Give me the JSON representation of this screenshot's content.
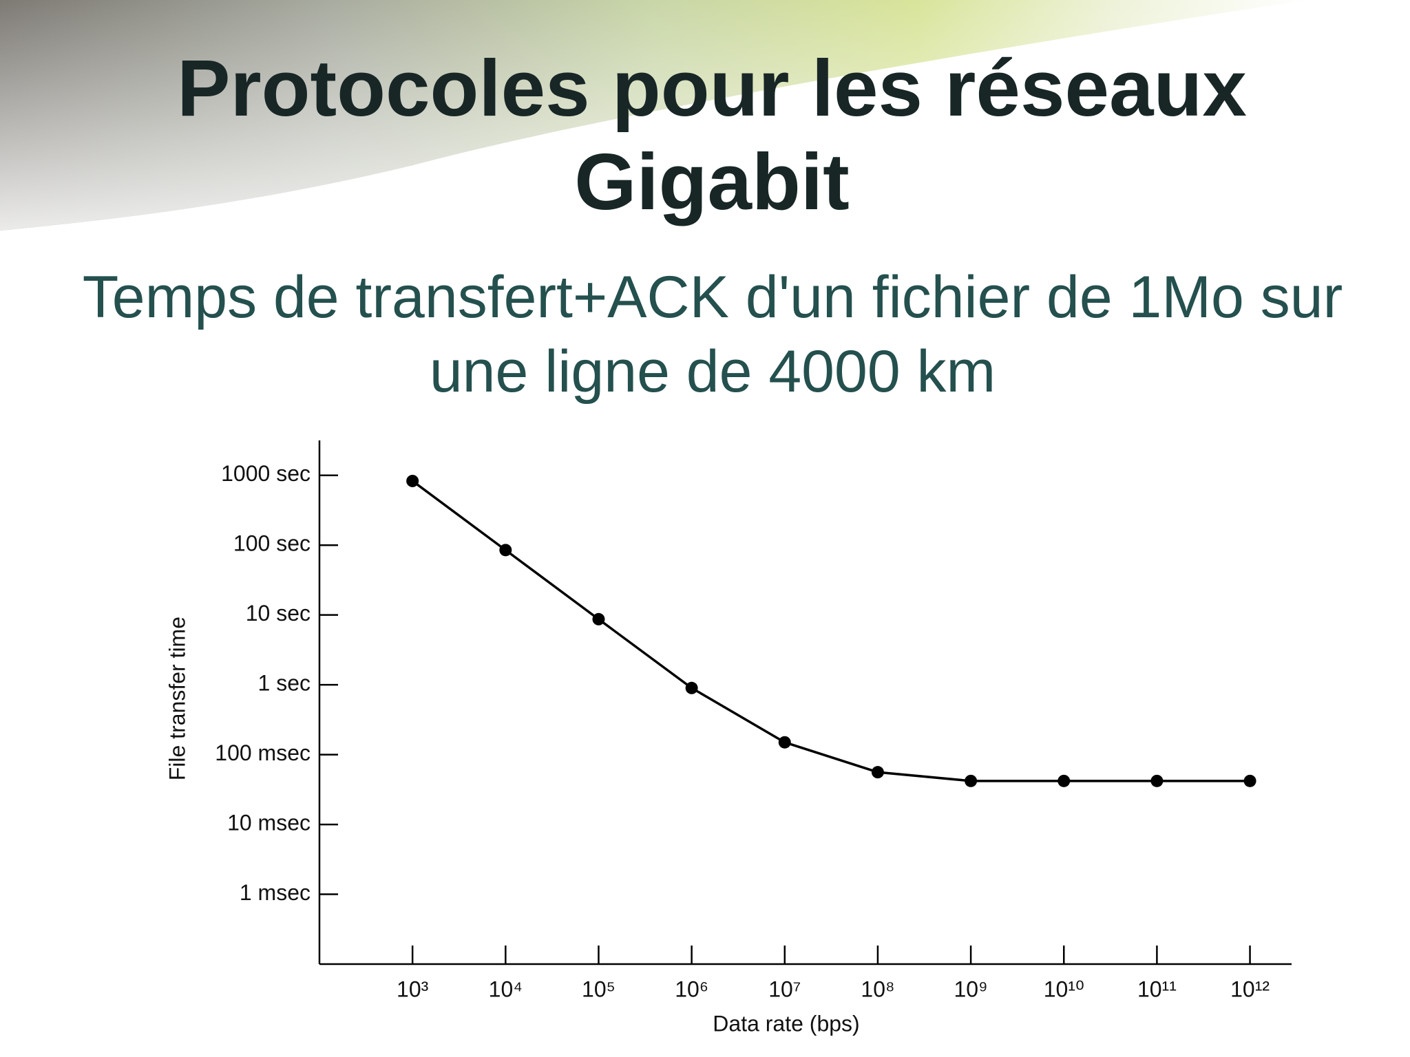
{
  "chart_data": {
    "type": "line",
    "title": "Protocoles pour les réseaux Gigabit",
    "subtitle": "Temps de transfert+ACK d'un fichier de 1Mo sur une ligne de 4000 km",
    "x_label": "Data rate (bps)",
    "y_label": "File transfer time",
    "log_x": true,
    "log_y": true,
    "grid": false,
    "markers": true,
    "color": "#000000",
    "x": [
      1000,
      10000,
      100000,
      1000000,
      10000000,
      100000000,
      1000000000,
      10000000000,
      100000000000,
      1000000000000
    ],
    "values": [
      830,
      85,
      8.7,
      0.9,
      0.15,
      0.056,
      0.042,
      0.042,
      0.042,
      0.042
    ],
    "xlim": [
      100,
      2800000000000
    ],
    "xticks": [
      {
        "value": 1000,
        "label": "10³"
      },
      {
        "value": 10000,
        "label": "10⁴"
      },
      {
        "value": 100000,
        "label": "10⁵"
      },
      {
        "value": 1000000,
        "label": "10⁶"
      },
      {
        "value": 10000000,
        "label": "10⁷"
      },
      {
        "value": 100000000,
        "label": "10⁸"
      },
      {
        "value": 1000000000,
        "label": "10⁹"
      },
      {
        "value": 10000000000,
        "label": "10¹⁰"
      },
      {
        "value": 100000000000,
        "label": "10¹¹"
      },
      {
        "value": 1000000000000,
        "label": "10¹²"
      }
    ],
    "ylim": [
      0.0001,
      3162
    ],
    "yticks": [
      {
        "value": 1000,
        "label": "1000 sec"
      },
      {
        "value": 100,
        "label": "100 sec"
      },
      {
        "value": 10,
        "label": "10 sec"
      },
      {
        "value": 1,
        "label": "1 sec"
      },
      {
        "value": 0.1,
        "label": "100 msec"
      },
      {
        "value": 0.01,
        "label": "10 msec"
      },
      {
        "value": 0.001,
        "label": "1 msec"
      }
    ]
  }
}
